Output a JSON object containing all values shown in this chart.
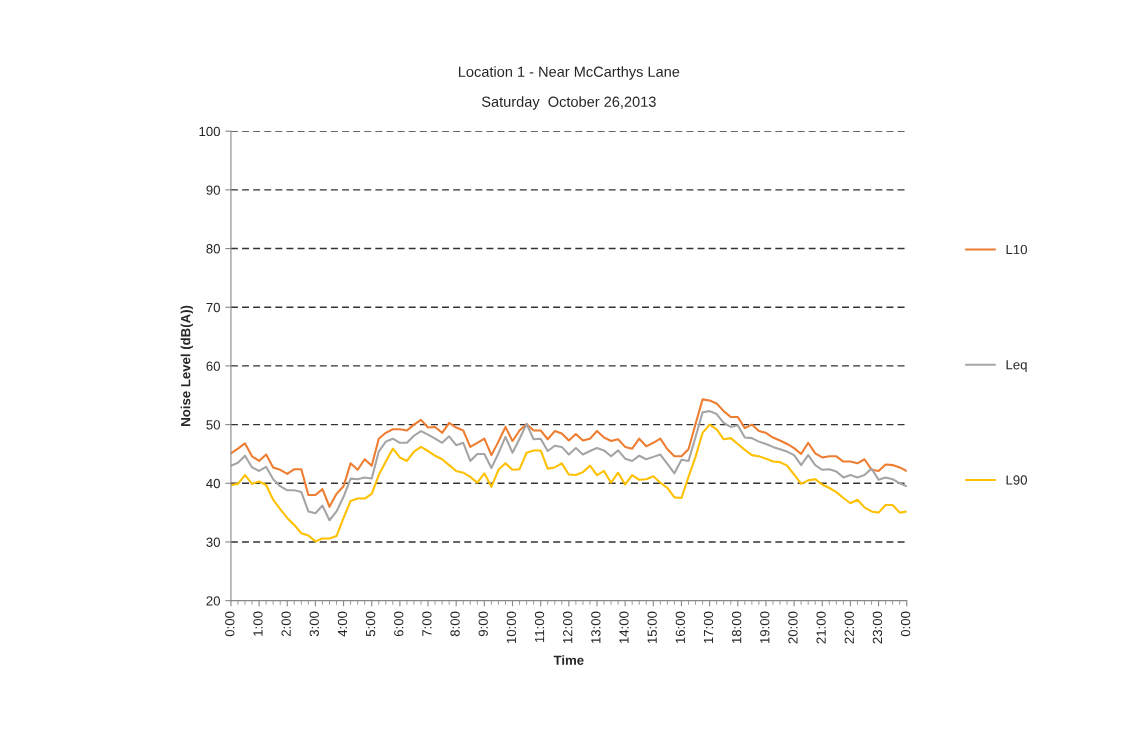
{
  "chart_data": {
    "type": "line",
    "title": "Location 1 - Near McCarthys Lane",
    "subtitle": "Saturday  October 26,2013",
    "xlabel": "Time",
    "ylabel": "Noise Level (dB(A))",
    "x": [
      0,
      0.25,
      0.5,
      0.75,
      1,
      1.25,
      1.5,
      1.75,
      2,
      2.25,
      2.5,
      2.75,
      3,
      3.25,
      3.5,
      3.75,
      4,
      4.25,
      4.5,
      4.75,
      5,
      5.25,
      5.5,
      5.75,
      6,
      6.25,
      6.5,
      6.75,
      7,
      7.25,
      7.5,
      7.75,
      8,
      8.25,
      8.5,
      8.75,
      9,
      9.25,
      9.5,
      9.75,
      10,
      10.25,
      10.5,
      10.75,
      11,
      11.25,
      11.5,
      11.75,
      12,
      12.25,
      12.5,
      12.75,
      13,
      13.25,
      13.5,
      13.75,
      14,
      14.25,
      14.5,
      14.75,
      15,
      15.25,
      15.5,
      15.75,
      16,
      16.25,
      16.5,
      16.75,
      17,
      17.25,
      17.5,
      17.75,
      18,
      18.25,
      18.5,
      18.75,
      19,
      19.25,
      19.5,
      19.75,
      20,
      20.25,
      20.5,
      20.75,
      21,
      21.25,
      21.5,
      21.75,
      22,
      22.25,
      22.5,
      22.75,
      23,
      23.25,
      23.5,
      23.75,
      24
    ],
    "series": [
      {
        "name": "L10",
        "color": "#ed7d31",
        "values": [
          45.1,
          45.9,
          46.8,
          44.6,
          43.8,
          44.9,
          42.7,
          42.3,
          41.6,
          42.4,
          42.4,
          38.0,
          38.0,
          39.0,
          36.0,
          38.2,
          39.5,
          43.4,
          42.3,
          44.1,
          43.0,
          47.6,
          48.6,
          49.2,
          49.2,
          49.0,
          50.0,
          50.8,
          49.5,
          49.6,
          48.6,
          50.3,
          49.5,
          49.0,
          46.2,
          46.9,
          47.6,
          44.8,
          47.1,
          49.6,
          47.2,
          49.0,
          50.1,
          49.0,
          49.0,
          47.5,
          48.9,
          48.5,
          47.3,
          48.4,
          47.3,
          47.6,
          48.9,
          47.8,
          47.2,
          47.5,
          46.2,
          45.9,
          47.6,
          46.3,
          46.9,
          47.6,
          45.8,
          44.6,
          44.6,
          45.8,
          50.1,
          54.3,
          54.1,
          53.6,
          52.3,
          51.3,
          51.3,
          49.4,
          50.0,
          48.9,
          48.6,
          47.8,
          47.3,
          46.7,
          46.0,
          45.0,
          46.9,
          45.1,
          44.4,
          44.6,
          44.6,
          43.7,
          43.7,
          43.4,
          44.1,
          42.3,
          42.1,
          43.2,
          43.1,
          42.7,
          42.1
        ]
      },
      {
        "name": "Leq",
        "color": "#a5a5a5",
        "values": [
          43.0,
          43.5,
          44.7,
          42.7,
          42.1,
          42.8,
          40.7,
          39.5,
          38.8,
          38.8,
          38.5,
          35.2,
          34.9,
          36.2,
          33.7,
          35.2,
          37.7,
          40.8,
          40.7,
          41.0,
          40.8,
          45.4,
          47.1,
          47.6,
          46.9,
          46.9,
          48.1,
          48.9,
          48.3,
          47.6,
          46.9,
          48.0,
          46.5,
          46.9,
          43.8,
          45.0,
          45.0,
          42.6,
          45.1,
          47.9,
          45.2,
          47.6,
          50.1,
          47.5,
          47.6,
          45.5,
          46.4,
          46.2,
          44.9,
          46.0,
          44.9,
          45.5,
          46.0,
          45.6,
          44.6,
          45.6,
          44.2,
          43.8,
          44.7,
          44.1,
          44.5,
          44.9,
          43.3,
          41.7,
          44.0,
          43.8,
          47.9,
          52.1,
          52.3,
          51.8,
          50.3,
          49.6,
          49.9,
          47.8,
          47.7,
          47.1,
          46.7,
          46.2,
          45.8,
          45.4,
          44.8,
          43.1,
          44.8,
          43.1,
          42.3,
          42.4,
          42.0,
          41.0,
          41.4,
          41.0,
          41.4,
          42.5,
          40.6,
          41.0,
          40.7,
          40.0,
          39.5
        ]
      },
      {
        "name": "L90",
        "color": "#ffc000",
        "values": [
          39.7,
          39.9,
          41.4,
          39.9,
          40.3,
          39.7,
          37.2,
          35.6,
          34.1,
          32.9,
          31.5,
          31.1,
          30.1,
          30.6,
          30.6,
          31.0,
          34.1,
          37.0,
          37.4,
          37.4,
          38.2,
          41.4,
          43.7,
          45.9,
          44.4,
          43.8,
          45.4,
          46.2,
          45.5,
          44.7,
          44.1,
          43.1,
          42.1,
          41.8,
          41.1,
          40.1,
          41.7,
          39.4,
          42.3,
          43.4,
          42.3,
          42.4,
          45.2,
          45.6,
          45.6,
          42.5,
          42.7,
          43.4,
          41.5,
          41.4,
          41.9,
          43.0,
          41.4,
          42.1,
          40.1,
          41.8,
          39.8,
          41.4,
          40.6,
          40.7,
          41.2,
          40.1,
          39.2,
          37.6,
          37.5,
          41.1,
          44.5,
          48.6,
          50.0,
          49.2,
          47.5,
          47.7,
          46.7,
          45.7,
          44.8,
          44.6,
          44.2,
          43.7,
          43.6,
          43.0,
          41.5,
          39.9,
          40.5,
          40.7,
          39.8,
          39.2,
          38.5,
          37.5,
          36.6,
          37.2,
          35.9,
          35.2,
          35.0,
          36.3,
          36.3,
          35.0,
          35.2
        ]
      }
    ],
    "xlim": [
      0,
      24
    ],
    "xticks": [
      {
        "value": 0,
        "label": "0:00"
      },
      {
        "value": 1,
        "label": "1:00"
      },
      {
        "value": 2,
        "label": "2:00"
      },
      {
        "value": 3,
        "label": "3:00"
      },
      {
        "value": 4,
        "label": "4:00"
      },
      {
        "value": 5,
        "label": "5:00"
      },
      {
        "value": 6,
        "label": "6:00"
      },
      {
        "value": 7,
        "label": "7:00"
      },
      {
        "value": 8,
        "label": "8:00"
      },
      {
        "value": 9,
        "label": "9:00"
      },
      {
        "value": 10,
        "label": "10:00"
      },
      {
        "value": 11,
        "label": "11:00"
      },
      {
        "value": 12,
        "label": "12:00"
      },
      {
        "value": 13,
        "label": "13:00"
      },
      {
        "value": 14,
        "label": "14:00"
      },
      {
        "value": 15,
        "label": "15:00"
      },
      {
        "value": 16,
        "label": "16:00"
      },
      {
        "value": 17,
        "label": "17:00"
      },
      {
        "value": 18,
        "label": "18:00"
      },
      {
        "value": 19,
        "label": "19:00"
      },
      {
        "value": 20,
        "label": "20:00"
      },
      {
        "value": 21,
        "label": "21:00"
      },
      {
        "value": 22,
        "label": "22:00"
      },
      {
        "value": 23,
        "label": "23:00"
      },
      {
        "value": 24,
        "label": "0:00"
      }
    ],
    "ylim": [
      20,
      100
    ],
    "yticks": [
      20,
      30,
      40,
      50,
      60,
      70,
      80,
      90,
      100
    ],
    "grid": "y",
    "legend": "right",
    "marker": "none",
    "line_style": "solid"
  }
}
